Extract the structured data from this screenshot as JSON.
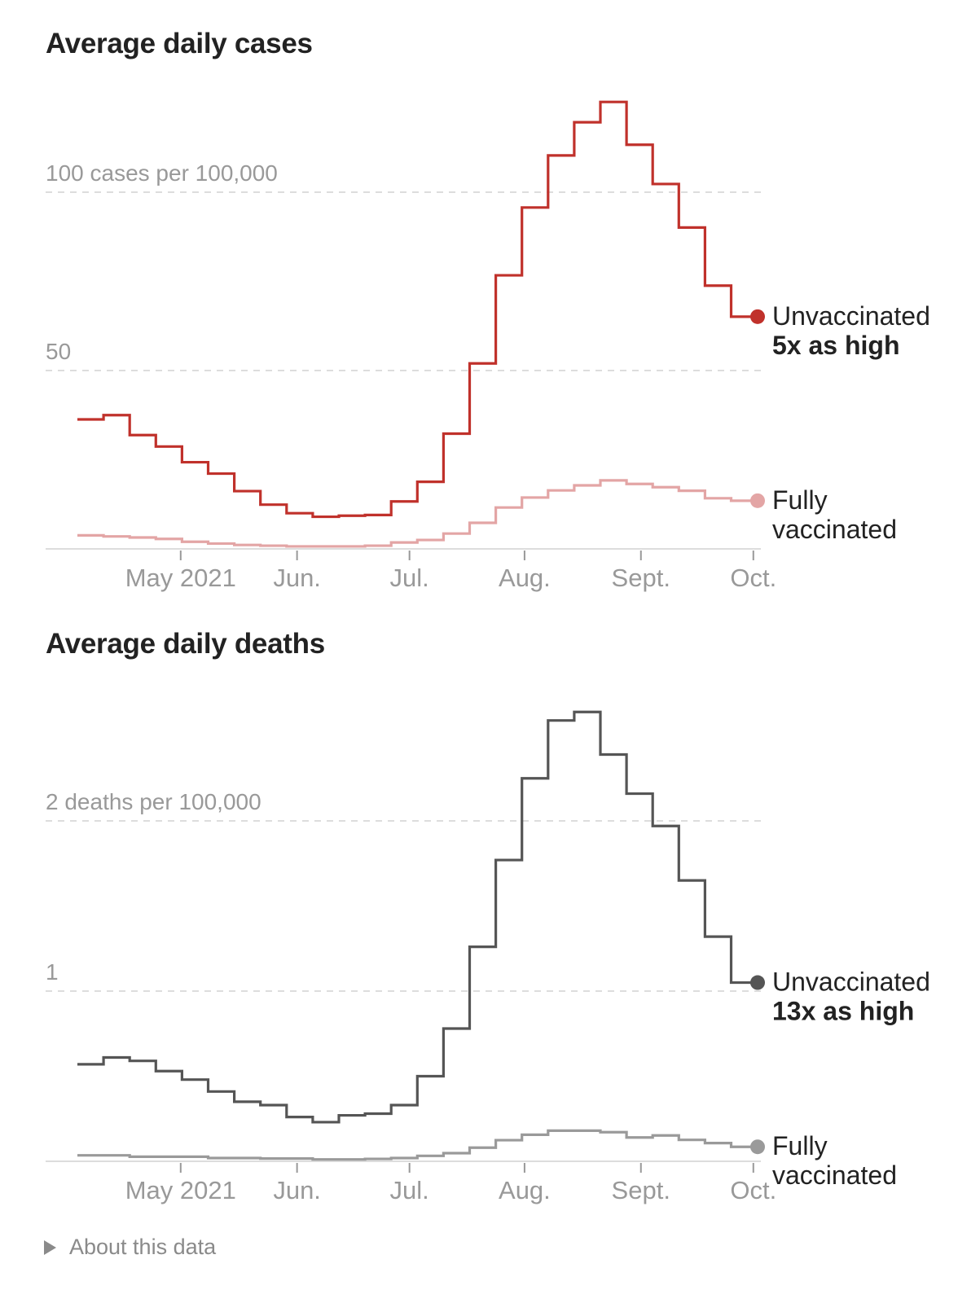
{
  "chart_data": [
    {
      "type": "line",
      "step": true,
      "title": "Average daily cases",
      "xlabel": "",
      "ylabel": "cases per 100,000",
      "y_ticks": [
        {
          "value": 50,
          "label": "50"
        },
        {
          "value": 100,
          "label": "100 cases per 100,000"
        }
      ],
      "ylim": [
        0,
        130
      ],
      "x_ticks": [
        "May 2021",
        "Jun.",
        "Jul.",
        "Aug.",
        "Sept.",
        "Oct."
      ],
      "x_tick_positions_weeks": [
        3.95,
        8.4,
        12.7,
        17.1,
        21.55,
        25.85
      ],
      "x_unit": "week index (weekly averages, mid-April to early October 2021)",
      "grid": true,
      "legend": "direct labels at right end of lines",
      "series": [
        {
          "name": "Unvaccinated",
          "annotation": "5x as high",
          "color": "#c0312b",
          "values": [
            36.3,
            37.5,
            31.9,
            28.7,
            24.3,
            21.1,
            16.2,
            12.4,
            10.0,
            9.0,
            9.3,
            9.5,
            13.3,
            18.8,
            32.3,
            52.0,
            76.7,
            95.7,
            110.3,
            119.6,
            125.3,
            113.3,
            102.3,
            90.1,
            73.8,
            65.1
          ]
        },
        {
          "name": "Fully vaccinated",
          "name_lines": [
            "Fully",
            "vaccinated"
          ],
          "annotation": "",
          "color": "#e3a5a5",
          "values": [
            3.8,
            3.5,
            3.2,
            2.8,
            2.0,
            1.5,
            1.1,
            0.9,
            0.7,
            0.7,
            0.7,
            0.9,
            1.8,
            2.5,
            4.3,
            7.3,
            11.6,
            14.4,
            16.4,
            17.8,
            19.2,
            18.2,
            17.3,
            16.3,
            14.2,
            13.5
          ]
        }
      ]
    },
    {
      "type": "line",
      "step": true,
      "title": "Average daily deaths",
      "xlabel": "",
      "ylabel": "deaths per 100,000",
      "y_ticks": [
        {
          "value": 1,
          "label": "1"
        },
        {
          "value": 2,
          "label": "2 deaths per 100,000"
        }
      ],
      "ylim": [
        0,
        2.7
      ],
      "x_ticks": [
        "May 2021",
        "Jun.",
        "Jul.",
        "Aug.",
        "Sept.",
        "Oct."
      ],
      "x_tick_positions_weeks": [
        3.95,
        8.4,
        12.7,
        17.1,
        21.55,
        25.85
      ],
      "x_unit": "week index (weekly averages, mid-April to early October 2021)",
      "grid": true,
      "legend": "direct labels at right end of lines",
      "series": [
        {
          "name": "Unvaccinated",
          "annotation": "13x as high",
          "color": "#555555",
          "values": [
            0.57,
            0.61,
            0.59,
            0.53,
            0.48,
            0.41,
            0.35,
            0.33,
            0.26,
            0.23,
            0.27,
            0.28,
            0.33,
            0.5,
            0.78,
            1.26,
            1.77,
            2.25,
            2.59,
            2.64,
            2.39,
            2.16,
            1.97,
            1.65,
            1.32,
            1.05
          ]
        },
        {
          "name": "Fully vaccinated",
          "name_lines": [
            "Fully",
            "vaccinated"
          ],
          "annotation": "",
          "color": "#9a9a9a",
          "values": [
            0.035,
            0.035,
            0.027,
            0.027,
            0.027,
            0.019,
            0.019,
            0.016,
            0.016,
            0.011,
            0.011,
            0.014,
            0.019,
            0.032,
            0.048,
            0.08,
            0.124,
            0.156,
            0.18,
            0.18,
            0.171,
            0.14,
            0.152,
            0.126,
            0.107,
            0.085
          ]
        }
      ]
    }
  ],
  "about": {
    "label": "About this data",
    "icon": "triangle-right-icon"
  },
  "colors": {
    "grid": "#dddddd",
    "axis": "#dddddd",
    "tick_label": "#999999",
    "label_text": "#222222"
  }
}
